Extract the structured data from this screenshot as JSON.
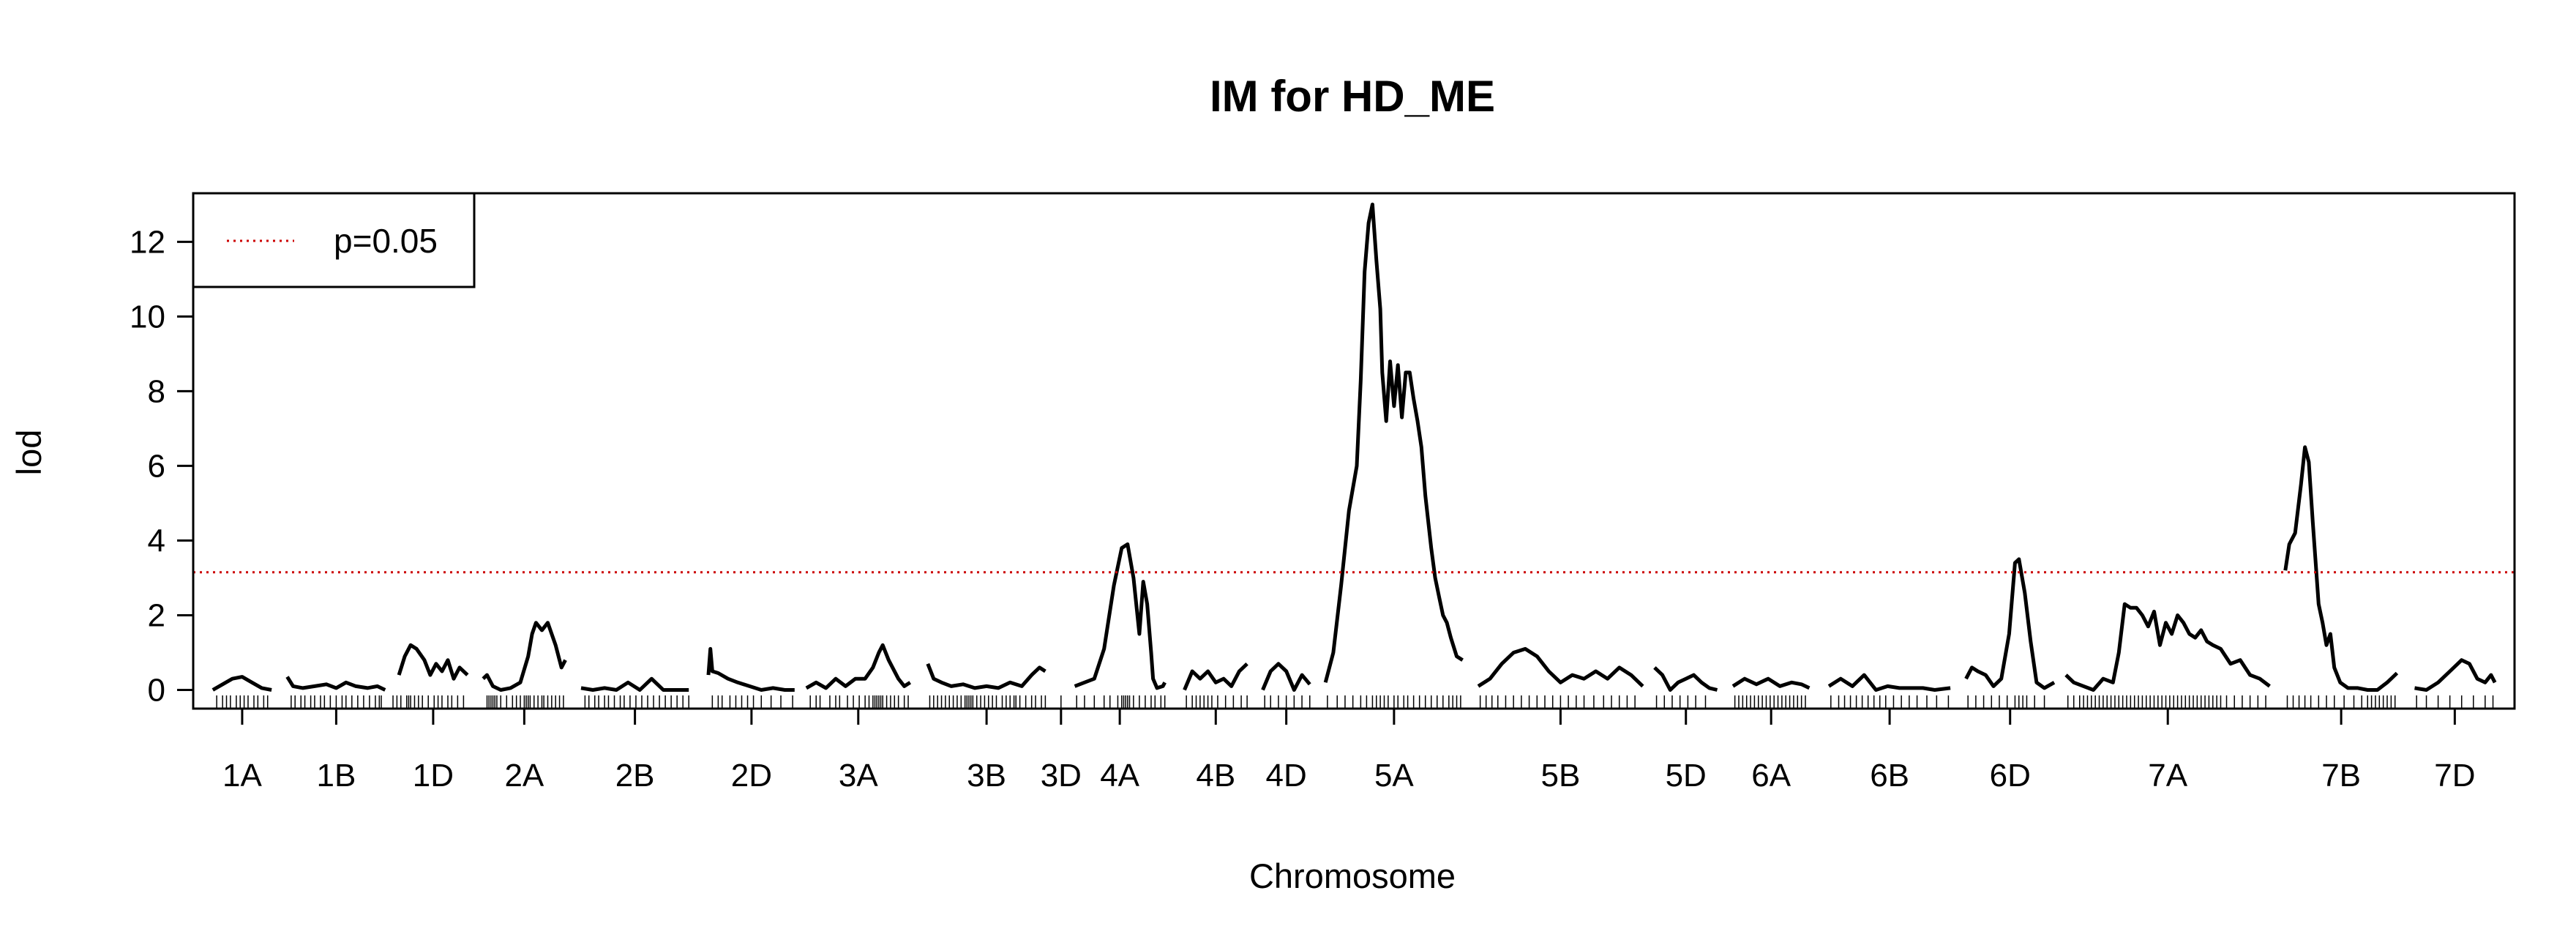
{
  "chart_data": {
    "type": "line",
    "title": "IM for HD_ME",
    "xlabel": "Chromosome",
    "ylabel": "lod",
    "ylim": [
      -0.5,
      13.3
    ],
    "yticks": [
      0,
      2,
      4,
      6,
      8,
      10,
      12
    ],
    "grid": false,
    "legend": {
      "placement": "top-left",
      "entries": [
        {
          "label": "p=0.05",
          "color": "#cc0000",
          "style": "dotted"
        }
      ]
    },
    "threshold": {
      "value": 3.15,
      "label": "p=0.05",
      "color": "#cc0000"
    },
    "line_color": "#000000",
    "chromosomes": [
      {
        "name": "1A",
        "start": 0,
        "end": 30,
        "x": [
          0,
          5,
          10,
          15,
          20,
          25,
          30
        ],
        "lod": [
          0,
          0.15,
          0.3,
          0.35,
          0.2,
          0.05,
          0.0
        ]
      },
      {
        "name": "1B",
        "start": 38,
        "end": 88,
        "x": [
          38,
          41,
          46,
          52,
          58,
          63,
          68,
          73,
          79,
          84,
          88
        ],
        "lod": [
          0.35,
          0.1,
          0.05,
          0.1,
          0.15,
          0.05,
          0.2,
          0.1,
          0.05,
          0.1,
          0.0
        ]
      },
      {
        "name": "1D",
        "start": 95,
        "end": 130,
        "x": [
          95,
          98,
          101,
          104,
          108,
          111,
          114,
          117,
          120,
          123,
          126,
          130
        ],
        "lod": [
          0.4,
          0.9,
          1.2,
          1.1,
          0.8,
          0.4,
          0.7,
          0.5,
          0.8,
          0.3,
          0.6,
          0.4
        ]
      },
      {
        "name": "2A",
        "start": 138,
        "end": 180,
        "x": [
          138,
          140,
          143,
          147,
          152,
          157,
          161,
          163,
          165,
          168,
          171,
          175,
          178,
          180
        ],
        "lod": [
          0.3,
          0.4,
          0.1,
          0.0,
          0.05,
          0.2,
          0.9,
          1.5,
          1.8,
          1.6,
          1.8,
          1.2,
          0.6,
          0.8
        ]
      },
      {
        "name": "2B",
        "start": 188,
        "end": 243,
        "x": [
          188,
          194,
          200,
          206,
          212,
          218,
          224,
          230,
          236,
          243
        ],
        "lod": [
          0.05,
          0.0,
          0.05,
          0.0,
          0.2,
          0.0,
          0.3,
          0.0,
          0.0,
          0.0
        ]
      },
      {
        "name": "2D",
        "start": 253,
        "end": 297,
        "x": [
          253,
          254,
          255,
          258,
          263,
          268,
          274,
          280,
          286,
          292,
          297
        ],
        "lod": [
          0.4,
          1.1,
          0.5,
          0.45,
          0.3,
          0.2,
          0.1,
          0.0,
          0.05,
          0.0,
          0.0
        ]
      },
      {
        "name": "3A",
        "start": 303,
        "end": 356,
        "x": [
          303,
          308,
          313,
          318,
          323,
          328,
          333,
          337,
          340,
          342,
          345,
          350,
          353,
          356
        ],
        "lod": [
          0.05,
          0.2,
          0.05,
          0.3,
          0.1,
          0.3,
          0.3,
          0.6,
          1.0,
          1.2,
          0.8,
          0.3,
          0.1,
          0.2
        ]
      },
      {
        "name": "3B",
        "start": 365,
        "end": 425,
        "x": [
          365,
          368,
          372,
          377,
          383,
          389,
          395,
          401,
          407,
          413,
          418,
          422,
          425
        ],
        "lod": [
          0.7,
          0.3,
          0.2,
          0.1,
          0.15,
          0.05,
          0.1,
          0.05,
          0.2,
          0.1,
          0.4,
          0.6,
          0.5
        ]
      },
      {
        "name": "3D",
        "start": 433,
        "end": 433,
        "x": [
          433
        ],
        "lod": [
          0.0
        ]
      },
      {
        "name": "4A",
        "start": 440,
        "end": 486,
        "x": [
          440,
          445,
          450,
          455,
          460,
          464,
          467,
          470,
          473,
          475,
          477,
          479,
          480,
          482,
          485,
          486
        ],
        "lod": [
          0.1,
          0.2,
          0.3,
          1.1,
          2.8,
          3.8,
          3.9,
          3.0,
          1.5,
          2.9,
          2.3,
          1.0,
          0.3,
          0.05,
          0.1,
          0.2
        ]
      },
      {
        "name": "4B",
        "start": 496,
        "end": 528,
        "x": [
          496,
          500,
          504,
          508,
          512,
          516,
          520,
          524,
          528
        ],
        "lod": [
          0.0,
          0.5,
          0.3,
          0.5,
          0.2,
          0.3,
          0.1,
          0.5,
          0.7
        ]
      },
      {
        "name": "4D",
        "start": 536,
        "end": 560,
        "x": [
          536,
          540,
          544,
          548,
          552,
          556,
          560
        ],
        "lod": [
          0.0,
          0.5,
          0.7,
          0.5,
          0.0,
          0.4,
          0.15
        ]
      },
      {
        "name": "5A",
        "start": 568,
        "end": 638,
        "x": [
          568,
          572,
          576,
          580,
          584,
          586,
          588,
          590,
          592,
          594,
          596,
          597,
          599,
          601,
          603,
          605,
          607,
          609,
          611,
          613,
          615,
          617,
          619,
          622,
          624,
          626,
          628,
          630,
          632,
          635,
          638
        ],
        "lod": [
          0.2,
          1.0,
          2.8,
          4.8,
          6.0,
          8.3,
          11.2,
          12.5,
          13.0,
          11.5,
          10.2,
          8.5,
          7.2,
          8.8,
          7.6,
          8.7,
          7.3,
          8.5,
          8.5,
          7.8,
          7.2,
          6.5,
          5.2,
          3.8,
          3.0,
          2.5,
          2.0,
          1.8,
          1.4,
          0.9,
          0.8
        ]
      },
      {
        "name": "5B",
        "start": 646,
        "end": 730,
        "x": [
          646,
          652,
          658,
          664,
          670,
          676,
          682,
          688,
          694,
          700,
          706,
          712,
          718,
          724,
          730
        ],
        "lod": [
          0.1,
          0.3,
          0.7,
          1.0,
          1.1,
          0.9,
          0.5,
          0.2,
          0.4,
          0.3,
          0.5,
          0.3,
          0.6,
          0.4,
          0.1
        ]
      },
      {
        "name": "5D",
        "start": 736,
        "end": 768,
        "x": [
          736,
          740,
          744,
          748,
          752,
          756,
          760,
          764,
          768
        ],
        "lod": [
          0.6,
          0.4,
          0.0,
          0.2,
          0.3,
          0.4,
          0.2,
          0.05,
          0.0
        ]
      },
      {
        "name": "6A",
        "start": 776,
        "end": 815,
        "x": [
          776,
          782,
          788,
          794,
          800,
          806,
          811,
          815
        ],
        "lod": [
          0.1,
          0.3,
          0.15,
          0.3,
          0.1,
          0.2,
          0.15,
          0.05
        ]
      },
      {
        "name": "6B",
        "start": 825,
        "end": 887,
        "x": [
          825,
          831,
          837,
          843,
          849,
          855,
          861,
          867,
          873,
          879,
          887
        ],
        "lod": [
          0.1,
          0.3,
          0.1,
          0.4,
          0.0,
          0.1,
          0.05,
          0.05,
          0.05,
          0.0,
          0.05
        ]
      },
      {
        "name": "6D",
        "start": 895,
        "end": 940,
        "x": [
          895,
          898,
          901,
          905,
          909,
          913,
          917,
          920,
          922,
          925,
          928,
          931,
          935,
          940
        ],
        "lod": [
          0.3,
          0.6,
          0.5,
          0.4,
          0.1,
          0.3,
          1.5,
          3.4,
          3.5,
          2.6,
          1.3,
          0.2,
          0.05,
          0.2
        ]
      },
      {
        "name": "7A",
        "start": 946,
        "end": 1050,
        "x": [
          946,
          950,
          955,
          960,
          965,
          970,
          973,
          976,
          979,
          982,
          985,
          988,
          991,
          994,
          997,
          1000,
          1003,
          1006,
          1009,
          1012,
          1015,
          1018,
          1021,
          1025,
          1030,
          1035,
          1040,
          1045,
          1050
        ],
        "lod": [
          0.4,
          0.2,
          0.1,
          0.0,
          0.3,
          0.2,
          1.0,
          2.3,
          2.2,
          2.2,
          2.0,
          1.7,
          2.1,
          1.2,
          1.8,
          1.5,
          2.0,
          1.8,
          1.5,
          1.4,
          1.6,
          1.3,
          1.2,
          1.1,
          0.7,
          0.8,
          0.4,
          0.3,
          0.1
        ]
      },
      {
        "name": "7B",
        "start": 1058,
        "end": 1115,
        "x": [
          1058,
          1060,
          1063,
          1066,
          1068,
          1070,
          1072,
          1075,
          1077,
          1079,
          1081,
          1083,
          1086,
          1090,
          1095,
          1100,
          1105,
          1110,
          1115
        ],
        "lod": [
          3.2,
          3.9,
          4.2,
          5.5,
          6.5,
          6.1,
          4.5,
          2.3,
          1.8,
          1.2,
          1.5,
          0.6,
          0.2,
          0.05,
          0.05,
          0.0,
          0.0,
          0.2,
          0.45
        ]
      },
      {
        "name": "7D",
        "start": 1124,
        "end": 1165,
        "x": [
          1124,
          1130,
          1136,
          1142,
          1148,
          1152,
          1156,
          1160,
          1163,
          1165
        ],
        "lod": [
          0.05,
          0.0,
          0.2,
          0.5,
          0.8,
          0.7,
          0.3,
          0.2,
          0.4,
          0.2
        ]
      }
    ],
    "markers": [
      2,
      5,
      7,
      9,
      12,
      14,
      16,
      18,
      21,
      23,
      26,
      28,
      40,
      42,
      45,
      47,
      50,
      52,
      55,
      57,
      60,
      63,
      66,
      68,
      71,
      74,
      77,
      80,
      83,
      85,
      86,
      92,
      94,
      96,
      99,
      100,
      101,
      103,
      105,
      107,
      110,
      113,
      115,
      117,
      120,
      122,
      125,
      128,
      140,
      141,
      142,
      143,
      144,
      145,
      147,
      150,
      153,
      155,
      157,
      159,
      160,
      161,
      162,
      164,
      166,
      168,
      169,
      171,
      173,
      175,
      177,
      179,
      190,
      192,
      195,
      197,
      200,
      202,
      205,
      208,
      210,
      213,
      216,
      219,
      222,
      225,
      228,
      231,
      234,
      237,
      240,
      243,
      255,
      258,
      260,
      264,
      267,
      270,
      273,
      276,
      280,
      285,
      290,
      296,
      305,
      308,
      310,
      315,
      318,
      320,
      324,
      327,
      330,
      333,
      335,
      337,
      338,
      339,
      340,
      341,
      342,
      344,
      346,
      348,
      350,
      353,
      355,
      366,
      368,
      370,
      372,
      374,
      376,
      378,
      380,
      382,
      384,
      385,
      386,
      387,
      388,
      390,
      392,
      394,
      396,
      398,
      400,
      403,
      405,
      407,
      409,
      410,
      412,
      415,
      418,
      420,
      423,
      425,
      433,
      441,
      445,
      450,
      455,
      458,
      462,
      464,
      465,
      466,
      467,
      468,
      470,
      473,
      476,
      479,
      481,
      484,
      486,
      497,
      500,
      502,
      504,
      506,
      508,
      510,
      513,
      517,
      521,
      525,
      528,
      537,
      540,
      544,
      548,
      552,
      556,
      560,
      569,
      574,
      578,
      582,
      586,
      589,
      592,
      594,
      596,
      598,
      600,
      603,
      605,
      608,
      610,
      613,
      616,
      619,
      622,
      625,
      628,
      631,
      633,
      635,
      637,
      647,
      650,
      653,
      656,
      660,
      664,
      668,
      672,
      676,
      680,
      684,
      688,
      692,
      696,
      700,
      705,
      710,
      714,
      718,
      722,
      726,
      737,
      741,
      745,
      749,
      753,
      757,
      762,
      777,
      779,
      781,
      783,
      785,
      787,
      789,
      791,
      793,
      795,
      797,
      799,
      801,
      803,
      805,
      807,
      809,
      811,
      813,
      826,
      830,
      833,
      836,
      839,
      842,
      845,
      848,
      851,
      854,
      858,
      862,
      866,
      870,
      875,
      880,
      886,
      896,
      900,
      904,
      908,
      912,
      916,
      920,
      922,
      924,
      926,
      930,
      935,
      947,
      950,
      953,
      955,
      957,
      959,
      961,
      963,
      965,
      967,
      969,
      971,
      973,
      975,
      977,
      979,
      981,
      983,
      985,
      987,
      989,
      991,
      993,
      995,
      997,
      999,
      1001,
      1003,
      1005,
      1007,
      1009,
      1011,
      1013,
      1015,
      1017,
      1019,
      1021,
      1023,
      1025,
      1028,
      1032,
      1036,
      1040,
      1044,
      1048,
      1059,
      1062,
      1065,
      1068,
      1071,
      1075,
      1079,
      1083,
      1088,
      1093,
      1097,
      1100,
      1102,
      1104,
      1106,
      1108,
      1110,
      1112,
      1114,
      1125,
      1130,
      1136,
      1142,
      1148,
      1154,
      1160,
      1164
    ]
  }
}
